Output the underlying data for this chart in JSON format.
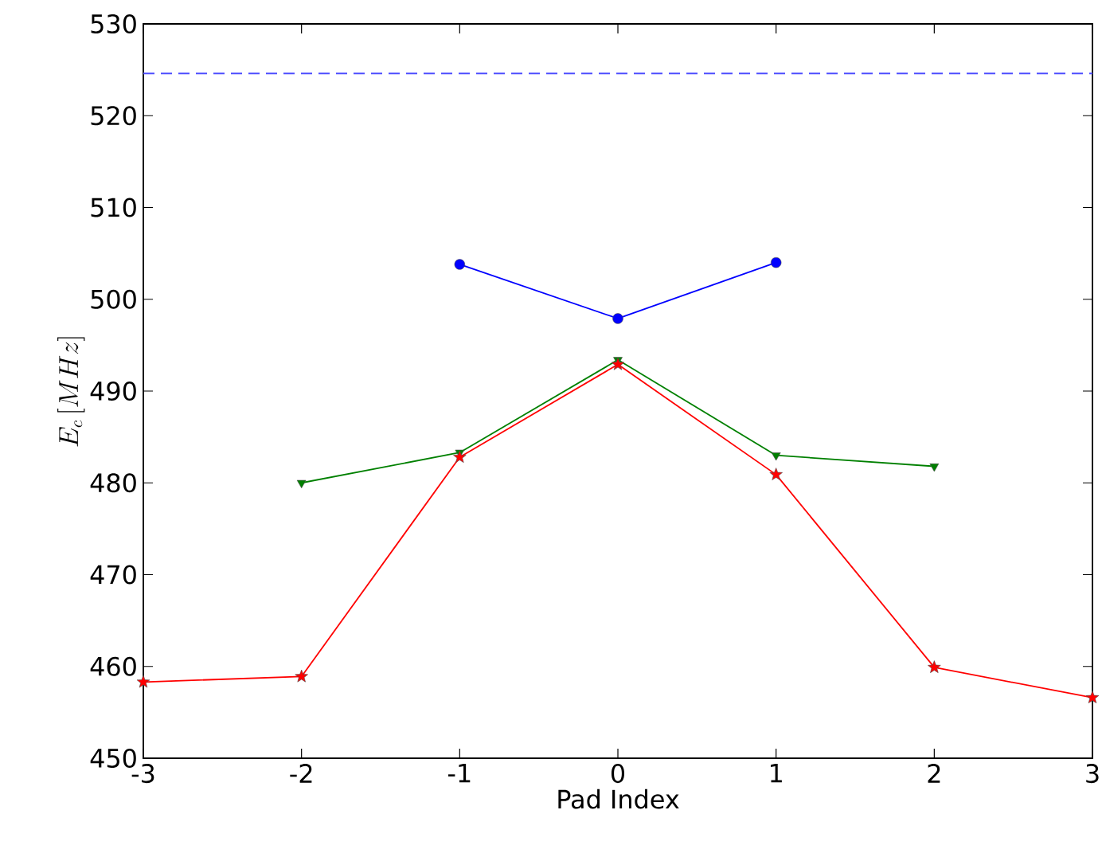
{
  "chart_data": {
    "type": "line",
    "xlabel": "Pad Index",
    "ylabel": "E_c\\,[MHz]",
    "xlim": [
      -3,
      3
    ],
    "xticks": [
      -3,
      -2,
      -1,
      0,
      1,
      2,
      3
    ],
    "ylim": [
      450,
      530
    ],
    "yticks": [
      450,
      460,
      470,
      480,
      490,
      500,
      510,
      520,
      530
    ],
    "grid": false,
    "series": [
      {
        "color": "#0000ff",
        "marker": "circle",
        "x": [
          -1,
          0,
          1
        ],
        "values": [
          503.8,
          497.9,
          504.0
        ]
      },
      {
        "color": "#008000",
        "marker": "triangle",
        "x": [
          -2,
          -1,
          0,
          1,
          2
        ],
        "values": [
          480.0,
          483.3,
          493.4,
          483.0,
          481.8
        ]
      },
      {
        "color": "#ff0000",
        "marker": "star",
        "x": [
          -3,
          -2,
          -1,
          0,
          1,
          2,
          3
        ],
        "values": [
          458.3,
          458.9,
          482.8,
          492.9,
          480.9,
          459.9,
          456.6
        ]
      }
    ],
    "ref_lines": [
      {
        "axis": "y",
        "value": 524.6,
        "color": "#4d4dff",
        "line_style": "dashed"
      }
    ]
  }
}
